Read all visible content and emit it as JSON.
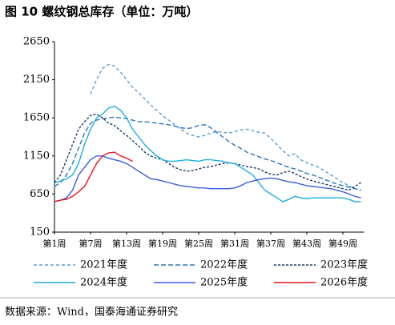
{
  "chart_data": {
    "type": "line",
    "title": "图 10 螺纹钢总库存（单位：万吨）",
    "source": "数据来源：Wind，国泰海通证券研究",
    "categories": [
      "第1周",
      null,
      null,
      null,
      null,
      null,
      "第7周",
      null,
      null,
      null,
      null,
      null,
      "第13周",
      null,
      null,
      null,
      null,
      null,
      "第19周",
      null,
      null,
      null,
      null,
      null,
      "第25周",
      null,
      null,
      null,
      null,
      null,
      "第31周",
      null,
      null,
      null,
      null,
      null,
      "第37周",
      null,
      null,
      null,
      null,
      null,
      "第43周",
      null,
      null,
      null,
      null,
      null,
      "第49周",
      null,
      null,
      null
    ],
    "ylim": [
      150,
      2650
    ],
    "yticks": [
      150,
      650,
      1150,
      1650,
      2150,
      2650
    ],
    "series": [
      {
        "name": "2021年度",
        "color": "#5b9bd5",
        "dashed": true,
        "values": [
          null,
          null,
          null,
          null,
          null,
          null,
          1960,
          2150,
          2300,
          2350,
          2330,
          2250,
          2150,
          2050,
          1980,
          1900,
          1820,
          1750,
          1680,
          1620,
          1560,
          1500,
          1450,
          1420,
          1400,
          1420,
          1450,
          1470,
          1460,
          1450,
          1470,
          1490,
          1500,
          1480,
          1460,
          1450,
          1380,
          1300,
          1220,
          1150,
          1180,
          1100,
          1060,
          1030,
          1000,
          950,
          900,
          850,
          800,
          760,
          720,
          700
        ]
      },
      {
        "name": "2022年度",
        "color": "#2e75b6",
        "dashed": true,
        "values": [
          750,
          800,
          900,
          1050,
          1250,
          1450,
          1580,
          1620,
          1640,
          1650,
          1660,
          1650,
          1640,
          1620,
          1600,
          1600,
          1590,
          1580,
          1570,
          1560,
          1540,
          1520,
          1510,
          1520,
          1550,
          1560,
          1520,
          1460,
          1400,
          1340,
          1290,
          1250,
          1200,
          1170,
          1140,
          1110,
          1090,
          1060,
          1030,
          1000,
          980,
          950,
          920,
          900,
          870,
          840,
          810,
          780,
          760,
          740,
          720,
          700
        ]
      },
      {
        "name": "2023年度",
        "color": "#1f3864",
        "dashed": true,
        "values": [
          800,
          900,
          1100,
          1300,
          1500,
          1600,
          1680,
          1700,
          1650,
          1580,
          1550,
          1480,
          1420,
          1350,
          1280,
          1200,
          1150,
          1120,
          1100,
          1050,
          1000,
          970,
          950,
          960,
          980,
          1000,
          1010,
          1030,
          1050,
          1060,
          1050,
          1030,
          1010,
          1000,
          980,
          940,
          910,
          900,
          930,
          950,
          920,
          880,
          850,
          820,
          800,
          780,
          760,
          740,
          720,
          700,
          750,
          800
        ]
      },
      {
        "name": "2024年度",
        "color": "#1ab0e0",
        "dashed": false,
        "values": [
          800,
          820,
          850,
          900,
          1050,
          1300,
          1500,
          1650,
          1700,
          1780,
          1800,
          1750,
          1650,
          1500,
          1400,
          1300,
          1220,
          1150,
          1100,
          1080,
          1080,
          1090,
          1100,
          1090,
          1080,
          1100,
          1100,
          1090,
          1080,
          1060,
          1050,
          1000,
          950,
          900,
          800,
          700,
          650,
          600,
          550,
          580,
          620,
          600,
          590,
          600,
          600,
          600,
          600,
          600,
          600,
          580,
          550,
          550
        ]
      },
      {
        "name": "2025年度",
        "color": "#3a5fe0",
        "dashed": false,
        "values": [
          550,
          570,
          600,
          700,
          900,
          1000,
          1100,
          1150,
          1150,
          1120,
          1100,
          1080,
          1050,
          1000,
          950,
          900,
          850,
          840,
          820,
          800,
          780,
          760,
          750,
          740,
          730,
          730,
          720,
          720,
          720,
          720,
          730,
          760,
          800,
          820,
          840,
          850,
          860,
          850,
          830,
          810,
          800,
          780,
          760,
          750,
          740,
          730,
          720,
          700,
          680,
          650,
          620,
          600
        ]
      },
      {
        "name": "2026年度",
        "color": "#e8141b",
        "dashed": false,
        "values": [
          550,
          570,
          580,
          620,
          680,
          750,
          900,
          1050,
          1150,
          1190,
          1200,
          1150,
          1120,
          1080,
          null,
          null,
          null,
          null,
          null,
          null,
          null,
          null,
          null,
          null,
          null,
          null,
          null,
          null,
          null,
          null,
          null,
          null,
          null,
          null,
          null,
          null,
          null,
          null,
          null,
          null,
          null,
          null,
          null,
          null,
          null,
          null,
          null,
          null,
          null,
          null,
          null,
          null
        ]
      }
    ]
  }
}
